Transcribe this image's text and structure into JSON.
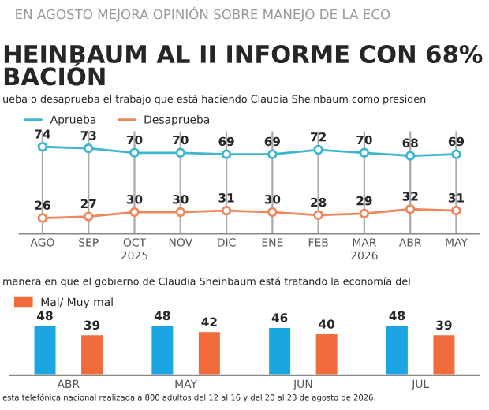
{
  "chart_data": [
    {
      "type": "line",
      "title": "HEINBAUM AL II INFORME CON 68%\nBACIÓN",
      "subtitle": "ueba o desaprueba el trabajo que está haciendo Claudia Sheinbaum como presiden",
      "annotations": [
        "EN AGOSTO MEJORA OPINIÓN SOBRE MANEJO DE LA ECO",
        "2025",
        "2026"
      ],
      "categories": [
        "AGO",
        "SEP",
        "OCT",
        "NOV",
        "DIC",
        "ENE",
        "FEB",
        "MAR",
        "ABR",
        "MAY"
      ],
      "series": [
        {
          "name": "Aprueba",
          "color": "#3cb6cc",
          "values": [
            74,
            73,
            70,
            70,
            69,
            69,
            72,
            70,
            68,
            69
          ]
        },
        {
          "name": "Desaprueba",
          "color": "#f0875a",
          "values": [
            26,
            27,
            30,
            30,
            31,
            30,
            28,
            29,
            32,
            31
          ]
        }
      ],
      "data_labels": true,
      "marker": "circle",
      "grid": "x",
      "legend": "top left"
    },
    {
      "type": "bar",
      "title": "manera en que el gobierno de Claudia Sheinbaum está tratando la economía del",
      "annotations": [
        "esta telefónica nacional realizada a 800 adultos del 12 al 16 y del 20 al 23 de agosto de 2026."
      ],
      "categories": [
        "ABR",
        "MAY",
        "JUN",
        "JUL"
      ],
      "series": [
        {
          "color": "#1ba6e2",
          "values": [
            48,
            48,
            46,
            48
          ]
        },
        {
          "name": "Mal/ Muy mal",
          "color": "#f26b3d",
          "values": [
            39,
            42,
            40,
            39
          ]
        }
      ],
      "tick_labels": "x",
      "data_labels": true,
      "legend": "top left"
    }
  ]
}
